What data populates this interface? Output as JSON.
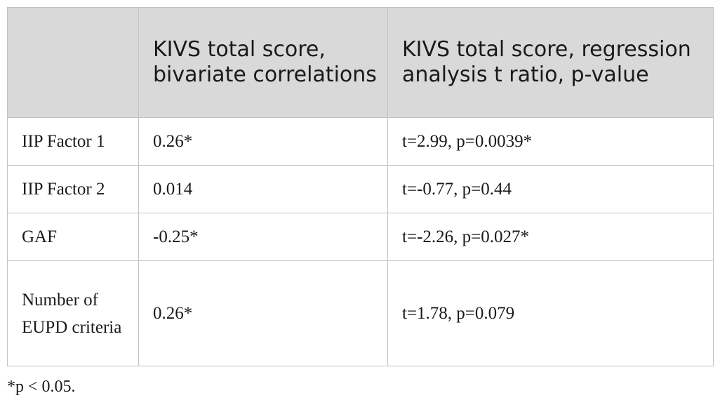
{
  "table": {
    "headers": [
      "",
      "KIVS total score, bivariate correlations",
      "KIVS total score, regression analysis t ratio, p-value"
    ],
    "rows": [
      {
        "label": "IIP Factor 1",
        "correlation": "0.26*",
        "regression": "t=2.99, p=0.0039*"
      },
      {
        "label": "IIP Factor 2",
        "correlation": "0.014",
        "regression": "t=-0.77, p=0.44"
      },
      {
        "label": "GAF",
        "correlation": "-0.25*",
        "regression": "t=-2.26, p=0.027*"
      },
      {
        "label": "Number of EUPD criteria",
        "correlation": "0.26*",
        "regression": "t=1.78, p=0.079"
      }
    ]
  },
  "footnote": "*p < 0.05."
}
